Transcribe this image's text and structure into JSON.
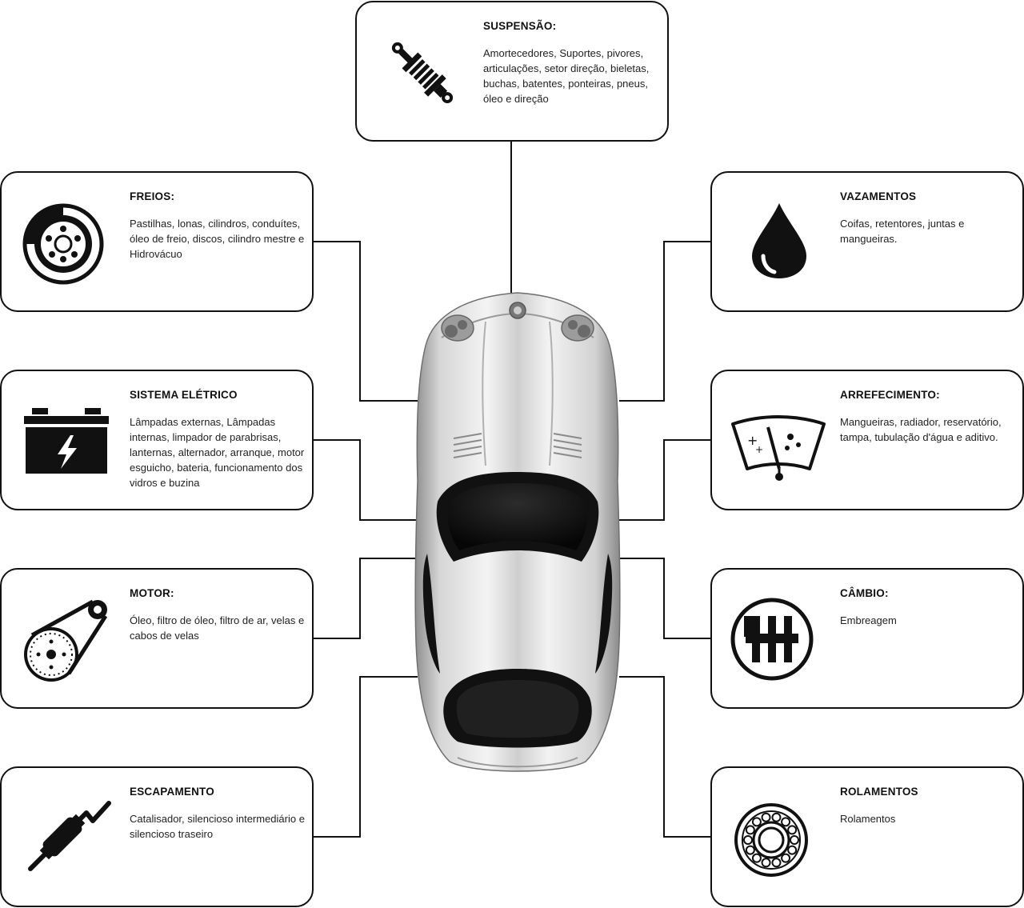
{
  "boxes": {
    "suspensao": {
      "title": "SUSPENSÃO:",
      "description": "Amortecedores, Suportes, pivores, articulações, setor direção, bieletas, buchas, batentes, ponteiras, pneus, óleo e direção",
      "icon": "shock-absorber-icon"
    },
    "freios": {
      "title": "FREIOS:",
      "description": "Pastilhas, lonas, cilindros, conduítes, óleo de freio, discos, cilindro mestre e Hidrovácuo",
      "icon": "brake-disc-icon"
    },
    "vazamentos": {
      "title": "VAZAMENTOS",
      "description": "Coifas, retentores, juntas e mangueiras.",
      "icon": "oil-drop-icon"
    },
    "eletrico": {
      "title": "SISTEMA ELÉTRICO",
      "description": "Lâmpadas externas, Lâmpadas internas, limpador de parabrisas, lanternas, alternador, arranque, motor esguicho, bateria, funcionamento dos vidros e buzina",
      "icon": "battery-icon"
    },
    "arrefecimento": {
      "title": "ARREFECIMENTO:",
      "description": "Mangueiras, radiador, reservatório, tampa, tubulação d'água e aditivo.",
      "icon": "windshield-wiper-icon"
    },
    "motor": {
      "title": "MOTOR:",
      "description": "Óleo, filtro de óleo, filtro de ar, velas e cabos de velas",
      "icon": "engine-belt-icon"
    },
    "cambio": {
      "title": "CÂMBIO:",
      "description": "Embreagem",
      "icon": "gear-shift-icon"
    },
    "escapamento": {
      "title": "ESCAPAMENTO",
      "description": "Catalisador, silencioso intermediário e silencioso traseiro",
      "icon": "exhaust-pipe-icon"
    },
    "rolamentos": {
      "title": "ROLAMENTOS",
      "description": "Rolamentos",
      "icon": "bearing-icon"
    }
  }
}
